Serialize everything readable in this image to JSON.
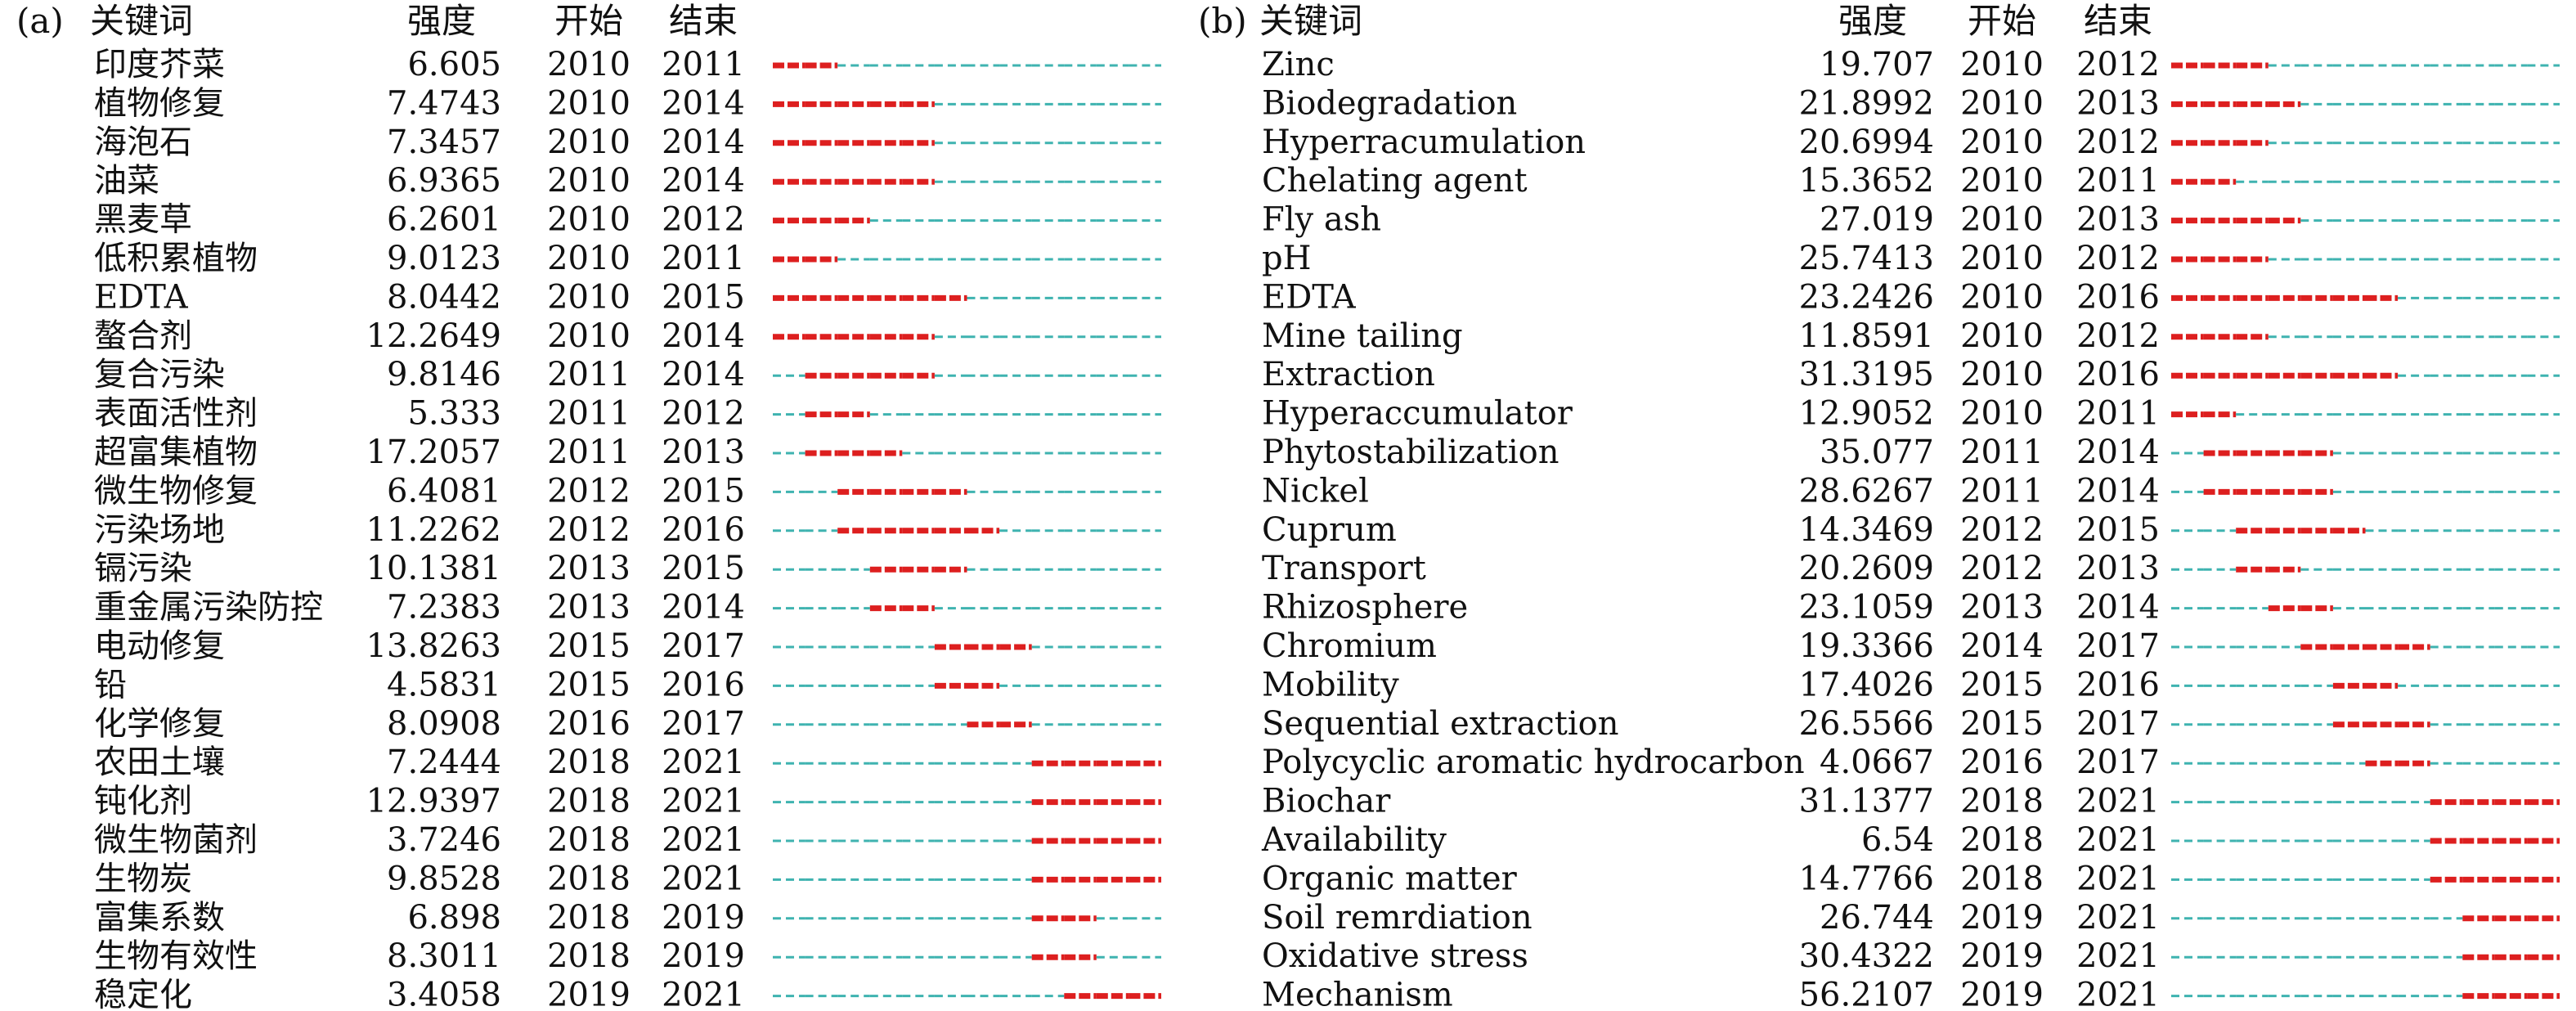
{
  "chart_data": [
    {
      "type": "table",
      "panel_label": "(a)",
      "headers": {
        "keyword": "关键词",
        "strength": "强度",
        "begin": "开始",
        "end": "结束"
      },
      "year_range": [
        2010,
        2021
      ],
      "colors": {
        "burst": "#dd1f1f",
        "baseline": "#3fb3b0"
      },
      "rows": [
        {
          "keyword": "印度芥菜",
          "strength": "6.605",
          "begin": 2010,
          "end": 2011
        },
        {
          "keyword": "植物修复",
          "strength": "7.4743",
          "begin": 2010,
          "end": 2014
        },
        {
          "keyword": "海泡石",
          "strength": "7.3457",
          "begin": 2010,
          "end": 2014
        },
        {
          "keyword": "油菜",
          "strength": "6.9365",
          "begin": 2010,
          "end": 2014
        },
        {
          "keyword": "黑麦草",
          "strength": "6.2601",
          "begin": 2010,
          "end": 2012
        },
        {
          "keyword": "低积累植物",
          "strength": "9.0123",
          "begin": 2010,
          "end": 2011
        },
        {
          "keyword": "EDTA",
          "strength": "8.0442",
          "begin": 2010,
          "end": 2015
        },
        {
          "keyword": "螯合剂",
          "strength": "12.2649",
          "begin": 2010,
          "end": 2014
        },
        {
          "keyword": "复合污染",
          "strength": "9.8146",
          "begin": 2011,
          "end": 2014
        },
        {
          "keyword": "表面活性剂",
          "strength": "5.333",
          "begin": 2011,
          "end": 2012
        },
        {
          "keyword": "超富集植物",
          "strength": "17.2057",
          "begin": 2011,
          "end": 2013
        },
        {
          "keyword": "微生物修复",
          "strength": "6.4081",
          "begin": 2012,
          "end": 2015
        },
        {
          "keyword": "污染场地",
          "strength": "11.2262",
          "begin": 2012,
          "end": 2016
        },
        {
          "keyword": "镉污染",
          "strength": "10.1381",
          "begin": 2013,
          "end": 2015
        },
        {
          "keyword": "重金属污染防控",
          "strength": "7.2383",
          "begin": 2013,
          "end": 2014
        },
        {
          "keyword": "电动修复",
          "strength": "13.8263",
          "begin": 2015,
          "end": 2017
        },
        {
          "keyword": "铅",
          "strength": "4.5831",
          "begin": 2015,
          "end": 2016
        },
        {
          "keyword": "化学修复",
          "strength": "8.0908",
          "begin": 2016,
          "end": 2017
        },
        {
          "keyword": "农田土壤",
          "strength": "7.2444",
          "begin": 2018,
          "end": 2021
        },
        {
          "keyword": "钝化剂",
          "strength": "12.9397",
          "begin": 2018,
          "end": 2021
        },
        {
          "keyword": "微生物菌剂",
          "strength": "3.7246",
          "begin": 2018,
          "end": 2021
        },
        {
          "keyword": "生物炭",
          "strength": "9.8528",
          "begin": 2018,
          "end": 2021
        },
        {
          "keyword": "富集系数",
          "strength": "6.898",
          "begin": 2018,
          "end": 2019
        },
        {
          "keyword": "生物有效性",
          "strength": "8.3011",
          "begin": 2018,
          "end": 2019
        },
        {
          "keyword": "稳定化",
          "strength": "3.4058",
          "begin": 2019,
          "end": 2021
        }
      ]
    },
    {
      "type": "table",
      "panel_label": "(b)",
      "headers": {
        "keyword": "关键词",
        "strength": "强度",
        "begin": "开始",
        "end": "结束"
      },
      "year_range": [
        2010,
        2021
      ],
      "colors": {
        "burst": "#dd1f1f",
        "baseline": "#3fb3b0"
      },
      "rows": [
        {
          "keyword": "Zinc",
          "strength": "19.707",
          "begin": 2010,
          "end": 2012
        },
        {
          "keyword": "Biodegradation",
          "strength": "21.8992",
          "begin": 2010,
          "end": 2013
        },
        {
          "keyword": "Hyperracumulation",
          "strength": "20.6994",
          "begin": 2010,
          "end": 2012
        },
        {
          "keyword": "Chelating agent",
          "strength": "15.3652",
          "begin": 2010,
          "end": 2011
        },
        {
          "keyword": "Fly ash",
          "strength": "27.019",
          "begin": 2010,
          "end": 2013
        },
        {
          "keyword": "pH",
          "strength": "25.7413",
          "begin": 2010,
          "end": 2012
        },
        {
          "keyword": "EDTA",
          "strength": "23.2426",
          "begin": 2010,
          "end": 2016
        },
        {
          "keyword": "Mine tailing",
          "strength": "11.8591",
          "begin": 2010,
          "end": 2012
        },
        {
          "keyword": "Extraction",
          "strength": "31.3195",
          "begin": 2010,
          "end": 2016
        },
        {
          "keyword": "Hyperaccumulator",
          "strength": "12.9052",
          "begin": 2010,
          "end": 2011
        },
        {
          "keyword": "Phytostabilization",
          "strength": "35.077",
          "begin": 2011,
          "end": 2014
        },
        {
          "keyword": "Nickel",
          "strength": "28.6267",
          "begin": 2011,
          "end": 2014
        },
        {
          "keyword": "Cuprum",
          "strength": "14.3469",
          "begin": 2012,
          "end": 2015
        },
        {
          "keyword": "Transport",
          "strength": "20.2609",
          "begin": 2012,
          "end": 2013
        },
        {
          "keyword": "Rhizosphere",
          "strength": "23.1059",
          "begin": 2013,
          "end": 2014
        },
        {
          "keyword": "Chromium",
          "strength": "19.3366",
          "begin": 2014,
          "end": 2017
        },
        {
          "keyword": "Mobility",
          "strength": "17.4026",
          "begin": 2015,
          "end": 2016
        },
        {
          "keyword": "Sequential extraction",
          "strength": "26.5566",
          "begin": 2015,
          "end": 2017
        },
        {
          "keyword": "Polycyclic aromatic hydrocarbon",
          "strength": "4.0667",
          "begin": 2016,
          "end": 2017
        },
        {
          "keyword": "Biochar",
          "strength": "31.1377",
          "begin": 2018,
          "end": 2021
        },
        {
          "keyword": "Availability",
          "strength": "6.54",
          "begin": 2018,
          "end": 2021
        },
        {
          "keyword": "Organic matter",
          "strength": "14.7766",
          "begin": 2018,
          "end": 2021
        },
        {
          "keyword": "Soil remrdiation",
          "strength": "26.744",
          "begin": 2019,
          "end": 2021
        },
        {
          "keyword": "Oxidative stress",
          "strength": "30.4322",
          "begin": 2019,
          "end": 2021
        },
        {
          "keyword": "Mechanism",
          "strength": "56.2107",
          "begin": 2019,
          "end": 2021
        }
      ]
    }
  ]
}
